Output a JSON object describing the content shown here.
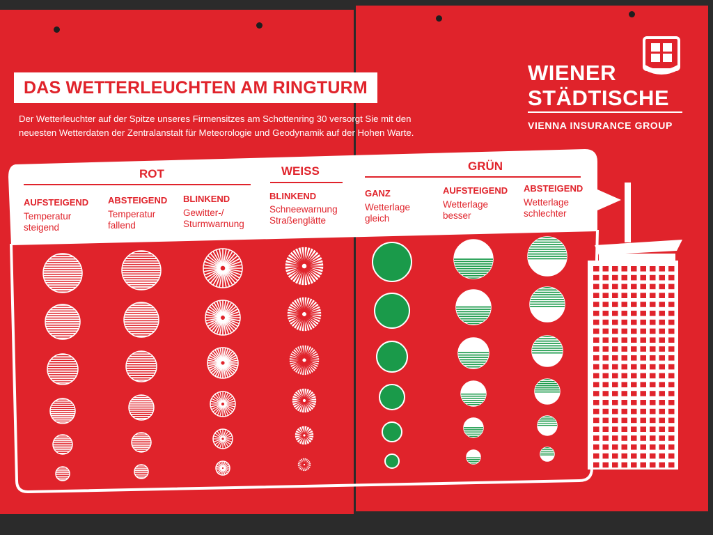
{
  "title": "DAS WETTERLEUCHTEN AM RINGTURM",
  "intro": [
    "Der Wetterleuchter auf der Spitze unseres Firmensitzes am Schottenring 30 versorgt Sie mit den",
    "neuesten Wetterdaten der Zentralanstalt für Meteorologie und Geodynamik auf der Hohen Warte."
  ],
  "logo": {
    "line1": "WIENER",
    "line2": "STÄDTISCHE",
    "subtitle": "VIENNA INSURANCE GROUP"
  },
  "groups": {
    "rot": "ROT",
    "weiss": "WEISS",
    "gruen": "GRÜN"
  },
  "columns": [
    {
      "mode": "AUFSTEIGEND",
      "desc": [
        "Temperatur",
        "steigend"
      ]
    },
    {
      "mode": "ABSTEIGEND",
      "desc": [
        "Temperatur",
        "fallend"
      ]
    },
    {
      "mode": "BLINKEND",
      "desc": [
        "Gewitter-/",
        "Sturmwarnung"
      ]
    },
    {
      "mode": "BLINKEND",
      "desc": [
        "Schneewarnung",
        "Straßenglätte"
      ]
    },
    {
      "mode": "GANZ",
      "desc": [
        "Wetterlage",
        "gleich"
      ]
    },
    {
      "mode": "AUFSTEIGEND",
      "desc": [
        "Wetterlage",
        "besser"
      ]
    },
    {
      "mode": "ABSTEIGEND",
      "desc": [
        "Wetterlage",
        "schlechter"
      ]
    }
  ],
  "colors": {
    "panel": "#e0232b",
    "white": "#ffffff",
    "green": "#1a9a4a",
    "frame": "#2b2b2b"
  }
}
